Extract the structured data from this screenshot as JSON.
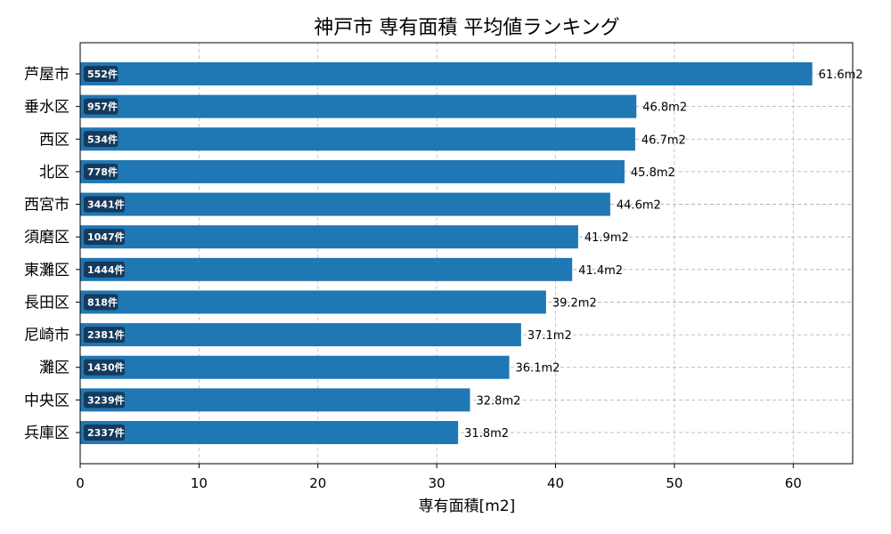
{
  "chart_data": {
    "type": "bar",
    "orientation": "horizontal",
    "title": "神戸市 専有面積 平均値ランキング",
    "xlabel": "専有面積[m2]",
    "ylabel": "",
    "xlim": [
      0,
      65
    ],
    "xticks": [
      0,
      10,
      20,
      30,
      40,
      50,
      60
    ],
    "grid": true,
    "bar_color": "#1f77b4",
    "badge_color": "#153a5c",
    "categories": [
      "芦屋市",
      "垂水区",
      "西区",
      "北区",
      "西宮市",
      "須磨区",
      "東灘区",
      "長田区",
      "尼崎市",
      "灘区",
      "中央区",
      "兵庫区"
    ],
    "values": [
      61.6,
      46.8,
      46.7,
      45.8,
      44.6,
      41.9,
      41.4,
      39.2,
      37.1,
      36.1,
      32.8,
      31.8
    ],
    "value_labels": [
      "61.6m2",
      "46.8m2",
      "46.7m2",
      "45.8m2",
      "44.6m2",
      "41.9m2",
      "41.4m2",
      "39.2m2",
      "37.1m2",
      "36.1m2",
      "32.8m2",
      "31.8m2"
    ],
    "counts": [
      "552件",
      "957件",
      "534件",
      "778件",
      "3441件",
      "1047件",
      "1444件",
      "818件",
      "2381件",
      "1430件",
      "3239件",
      "2337件"
    ]
  }
}
